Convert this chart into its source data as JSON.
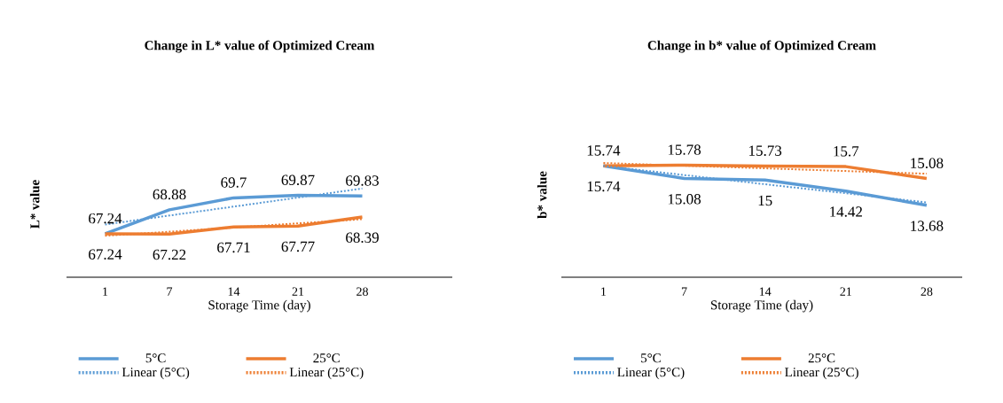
{
  "chart_data": [
    {
      "type": "line",
      "title": "Change in L* value of Optimized Cream",
      "xlabel": "Storage Time (day)",
      "ylabel": "L* value",
      "categories": [
        "1",
        "7",
        "14",
        "21",
        "28"
      ],
      "marker": "none",
      "grid": false,
      "legend": "bottom",
      "series": [
        {
          "name": "5°C",
          "color": "#5b9bd5",
          "line_style": "solid",
          "values": [
            67.24,
            68.88,
            69.7,
            69.87,
            69.83
          ],
          "value_labels": [
            "67.24",
            "68.88",
            "69.7",
            "69.87",
            "69.83"
          ]
        },
        {
          "name": "25°C",
          "color": "#ed7d31",
          "line_style": "solid",
          "values": [
            67.24,
            67.22,
            67.71,
            67.77,
            68.39
          ],
          "value_labels": [
            "67.24",
            "67.22",
            "67.71",
            "67.77",
            "68.39"
          ]
        },
        {
          "name": "Linear (5°C)",
          "color": "#5b9bd5",
          "line_style": "dotted",
          "values": [
            67.87,
            68.49,
            69.1,
            69.72,
            70.34
          ]
        },
        {
          "name": "Linear (25°C)",
          "color": "#ed7d31",
          "line_style": "dotted",
          "values": [
            67.1,
            67.38,
            67.67,
            67.95,
            68.24
          ]
        }
      ]
    },
    {
      "type": "line",
      "title": "Change in b* value of Optimized Cream",
      "xlabel": "Storage Time (day)",
      "ylabel": "b* value",
      "categories": [
        "1",
        "7",
        "14",
        "21",
        "28"
      ],
      "marker": "none",
      "grid": false,
      "legend": "bottom",
      "series": [
        {
          "name": "5°C",
          "color": "#5b9bd5",
          "line_style": "solid",
          "values": [
            15.74,
            15.08,
            15,
            14.42,
            13.68
          ],
          "value_labels": [
            "15.74",
            "15.08",
            "15",
            "14.42",
            "13.68"
          ]
        },
        {
          "name": "25°C",
          "color": "#ed7d31",
          "line_style": "solid",
          "values": [
            15.74,
            15.78,
            15.73,
            15.7,
            15.08
          ],
          "value_labels": [
            "15.74",
            "15.78",
            "15.73",
            "15.7",
            "15.08"
          ]
        },
        {
          "name": "Linear (5°C)",
          "color": "#5b9bd5",
          "line_style": "dotted",
          "values": [
            15.74,
            15.26,
            14.78,
            14.31,
            13.83
          ]
        },
        {
          "name": "Linear (25°C)",
          "color": "#ed7d31",
          "line_style": "dotted",
          "values": [
            15.89,
            15.75,
            15.61,
            15.47,
            15.33
          ]
        }
      ]
    }
  ]
}
